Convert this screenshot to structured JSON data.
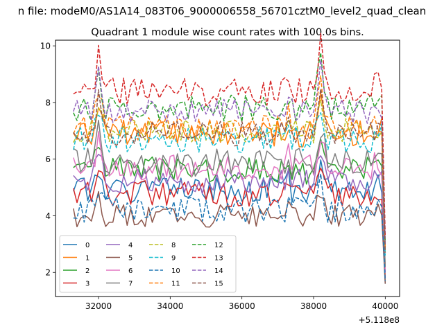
{
  "chart_data": {
    "type": "line",
    "suptitle": "n file: modeM0/AS1A14_083T06_9000006558_56701cztM0_level2_quad_clean",
    "title": "Quadrant 1 module wise count rates with 100.0s bins.",
    "xlabel": "",
    "ylabel": "",
    "x_offset_label": "+5.118e8",
    "xlim": [
      30800,
      40400
    ],
    "ylim": [
      1.15,
      10.2
    ],
    "x_ticks": [
      32000,
      34000,
      36000,
      38000,
      40000
    ],
    "y_ticks": [
      2,
      4,
      6,
      8,
      10
    ],
    "grid": false,
    "legend": {
      "placement": "lower-left",
      "columns": 4
    },
    "x_start": 31300,
    "x_end": 40000,
    "x_step": 100,
    "series": [
      {
        "name": "0",
        "color": "#1f77b4",
        "dash": "solid",
        "base": 4.9,
        "amp": 0.28,
        "seed": 1,
        "end": 1.6
      },
      {
        "name": "1",
        "color": "#ff7f0e",
        "dash": "solid",
        "base": 6.9,
        "amp": 0.3,
        "seed": 2,
        "end": 2.7
      },
      {
        "name": "2",
        "color": "#2ca02c",
        "dash": "solid",
        "base": 5.6,
        "amp": 0.3,
        "seed": 3,
        "end": 2.1
      },
      {
        "name": "3",
        "color": "#d62728",
        "dash": "solid",
        "base": 4.8,
        "amp": 0.3,
        "seed": 4,
        "end": 1.8
      },
      {
        "name": "4",
        "color": "#9467bd",
        "dash": "solid",
        "base": 5.2,
        "amp": 0.28,
        "seed": 5,
        "end": 2.0
      },
      {
        "name": "5",
        "color": "#8c564b",
        "dash": "solid",
        "base": 4.0,
        "amp": 0.25,
        "seed": 6,
        "end": 1.6
      },
      {
        "name": "6",
        "color": "#e377c2",
        "dash": "solid",
        "base": 5.7,
        "amp": 0.28,
        "seed": 7,
        "end": 2.1
      },
      {
        "name": "7",
        "color": "#7f7f7f",
        "dash": "solid",
        "base": 5.9,
        "amp": 0.32,
        "seed": 8,
        "end": 2.2
      },
      {
        "name": "8",
        "color": "#bcbd22",
        "dash": "dashed",
        "base": 7.0,
        "amp": 0.28,
        "seed": 9,
        "end": 2.8
      },
      {
        "name": "9",
        "color": "#17becf",
        "dash": "dashed",
        "base": 6.7,
        "amp": 0.3,
        "seed": 10,
        "end": 2.6
      },
      {
        "name": "10",
        "color": "#1f77b4",
        "dash": "dashed",
        "base": 4.2,
        "amp": 0.28,
        "seed": 11,
        "end": 1.7
      },
      {
        "name": "11",
        "color": "#ff7f0e",
        "dash": "dashed",
        "base": 7.1,
        "amp": 0.28,
        "seed": 12,
        "end": 2.9
      },
      {
        "name": "12",
        "color": "#2ca02c",
        "dash": "dashed",
        "base": 7.8,
        "amp": 0.3,
        "seed": 13,
        "end": 3.1
      },
      {
        "name": "13",
        "color": "#d62728",
        "dash": "dashed",
        "base": 8.4,
        "amp": 0.32,
        "seed": 14,
        "end": 3.3
      },
      {
        "name": "14",
        "color": "#9467bd",
        "dash": "dashed",
        "base": 7.7,
        "amp": 0.28,
        "seed": 15,
        "end": 3.0
      },
      {
        "name": "15",
        "color": "#8c564b",
        "dash": "dashed",
        "base": 6.9,
        "amp": 0.28,
        "seed": 16,
        "end": 2.7
      }
    ],
    "features": [
      {
        "x": 31900,
        "y": 0.35
      },
      {
        "x": 32000,
        "y": 0.85
      },
      {
        "x": 32100,
        "y": 0.45
      },
      {
        "x": 37300,
        "y": 0.4
      },
      {
        "x": 38100,
        "y": 0.55
      },
      {
        "x": 38200,
        "y": 1.05
      },
      {
        "x": 38300,
        "y": 0.45
      }
    ]
  }
}
